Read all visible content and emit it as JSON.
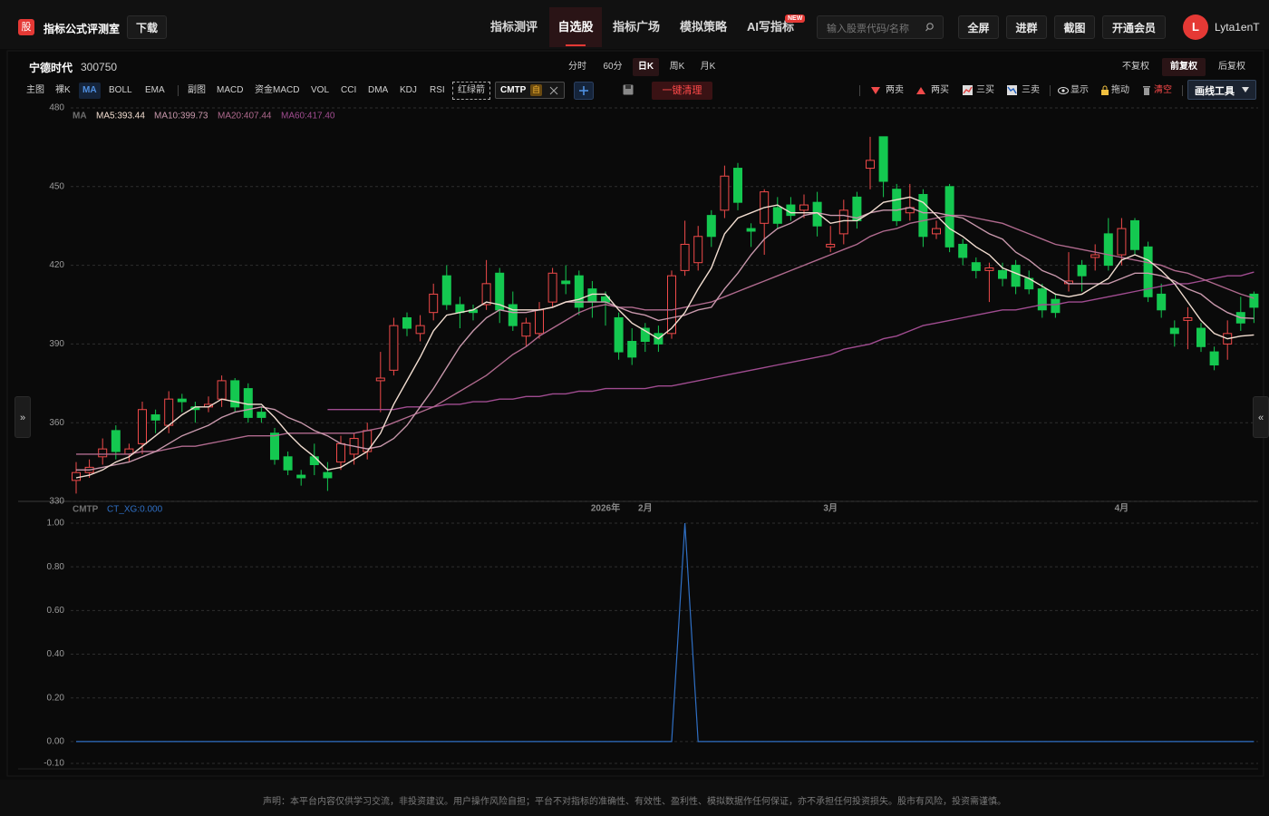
{
  "header": {
    "logo": "股",
    "title": "指标公式评测室",
    "download": "下载"
  },
  "nav": [
    "指标测评",
    "自选股",
    "指标广场",
    "模拟策略",
    "AI写指标"
  ],
  "nav_badge": "NEW",
  "search_placeholder": "输入股票代码/名称",
  "actions": [
    "全屏",
    "进群",
    "截图",
    "开通会员"
  ],
  "user": {
    "initial": "L",
    "name": "Lyta1enT"
  },
  "stock": {
    "name": "宁德时代",
    "code": "300750"
  },
  "periods": [
    "分时",
    "60分",
    "日K",
    "周K",
    "月K"
  ],
  "adjust": [
    "不复权",
    "前复权",
    "后复权"
  ],
  "toolbar": {
    "main": [
      "主图",
      "裸K",
      "MA",
      "BOLL",
      "EMA"
    ],
    "sub": [
      "副图",
      "MACD",
      "资金MACD",
      "VOL",
      "CCI",
      "DMA",
      "KDJ",
      "RSI",
      "红绿箭"
    ],
    "custom": "CMTP",
    "custom_tag": "自",
    "clear": "一键清理"
  },
  "draw_tools": [
    "两卖",
    "两买",
    "三买",
    "三卖",
    "显示",
    "拖动",
    "清空",
    "画线工具"
  ],
  "side": {
    "left": "»",
    "right": "«"
  },
  "footer": "声明：本平台内容仅供学习交流，非投资建议。用户操作风险自担；平台不对指标的准确性、有效性、盈利性、模拟数据作任何保证，亦不承担任何投资损失。股市有风险，投资需谨慎。",
  "chart_data": [
    {
      "type": "candlestick",
      "legend_title": "MA",
      "x": [
        null,
        null,
        null,
        null,
        null,
        null,
        null,
        null,
        null,
        null,
        null,
        null,
        null,
        null,
        null,
        null,
        null,
        null,
        null,
        null,
        null,
        null,
        null,
        null,
        null,
        null,
        null,
        null,
        null,
        null,
        null,
        null,
        null,
        null,
        null,
        null,
        null,
        null,
        null,
        null,
        "2026年",
        null,
        null,
        "2月",
        null,
        null,
        null,
        null,
        null,
        null,
        null,
        null,
        null,
        null,
        null,
        null,
        null,
        "3月",
        null,
        null,
        null,
        null,
        null,
        null,
        null,
        null,
        null,
        null,
        null,
        null,
        null,
        null,
        null,
        null,
        null,
        null,
        null,
        null,
        null,
        "4月",
        null,
        null,
        null,
        null,
        null,
        null,
        null,
        null,
        null,
        null
      ],
      "open": [
        338,
        341,
        347,
        357,
        348,
        352,
        363,
        359,
        369,
        366,
        366,
        369,
        376,
        373,
        364,
        356,
        347,
        340,
        347,
        341,
        345,
        348,
        349,
        376,
        380,
        400,
        394,
        402,
        416,
        405,
        403,
        405,
        417,
        405,
        393,
        394,
        406,
        414,
        416,
        411,
        408,
        400,
        391,
        396,
        394,
        394,
        418,
        421,
        439,
        441,
        457,
        434,
        436,
        442,
        443,
        441,
        444,
        427,
        432,
        446,
        457,
        469,
        449,
        440,
        447,
        432,
        450,
        428,
        421,
        418,
        418,
        420,
        415,
        411,
        407,
        413,
        420,
        423,
        432,
        424,
        437,
        427,
        409,
        396,
        399,
        396,
        387,
        390,
        402,
        409
      ],
      "high": [
        345,
        346,
        354,
        359,
        352,
        368,
        365,
        372,
        371,
        368,
        370,
        378,
        377,
        375,
        366,
        358,
        349,
        342,
        352,
        345,
        355,
        356,
        360,
        387,
        400,
        402,
        401,
        413,
        420,
        408,
        405,
        422,
        419,
        410,
        400,
        406,
        419,
        420,
        418,
        414,
        410,
        402,
        396,
        398,
        397,
        418,
        437,
        435,
        441,
        458,
        459,
        436,
        449,
        446,
        446,
        447,
        448,
        435,
        445,
        448,
        469,
        469,
        451,
        451,
        449,
        437,
        451,
        430,
        423,
        421,
        421,
        422,
        418,
        413,
        409,
        425,
        422,
        428,
        438,
        438,
        438,
        429,
        413,
        399,
        404,
        398,
        389,
        399,
        408,
        410
      ],
      "low": [
        333,
        339,
        344,
        346,
        345,
        348,
        356,
        356,
        364,
        360,
        364,
        366,
        364,
        360,
        360,
        344,
        340,
        336,
        340,
        334,
        342,
        344,
        346,
        364,
        378,
        393,
        391,
        399,
        403,
        396,
        399,
        403,
        398,
        395,
        389,
        392,
        404,
        409,
        401,
        400,
        397,
        384,
        382,
        387,
        387,
        392,
        416,
        418,
        427,
        438,
        441,
        427,
        424,
        434,
        437,
        438,
        431,
        425,
        428,
        434,
        449,
        446,
        435,
        437,
        427,
        430,
        425,
        420,
        415,
        406,
        412,
        409,
        409,
        400,
        400,
        410,
        410,
        418,
        418,
        420,
        424,
        406,
        400,
        389,
        388,
        387,
        380,
        384,
        395,
        398
      ],
      "close": [
        341,
        343,
        350,
        349,
        350,
        365,
        361,
        369,
        368,
        365,
        367,
        376,
        366,
        362,
        362,
        346,
        342,
        339,
        344,
        339,
        352,
        354,
        357,
        377,
        397,
        396,
        397,
        409,
        405,
        402,
        402,
        413,
        403,
        397,
        398,
        403,
        417,
        413,
        404,
        406,
        406,
        387,
        385,
        391,
        390,
        416,
        428,
        431,
        431,
        454,
        444,
        433,
        448,
        436,
        439,
        443,
        435,
        428,
        441,
        437,
        460,
        452,
        437,
        442,
        431,
        434,
        427,
        423,
        418,
        419,
        415,
        412,
        411,
        403,
        402,
        414,
        416,
        424,
        420,
        434,
        426,
        408,
        403,
        394,
        400,
        389,
        382,
        394,
        398,
        404
      ],
      "up_color": "#f04a4a",
      "down_color": "#14c850",
      "series": [
        {
          "name": "MA5:393.44",
          "color": "#f2ddd0",
          "values": [
            339,
            340,
            342,
            345,
            347,
            351,
            355,
            359,
            363,
            366,
            366,
            369,
            368,
            367,
            367,
            362,
            356,
            351,
            347,
            342,
            343,
            346,
            349,
            356,
            367,
            376,
            385,
            395,
            401,
            402,
            403,
            406,
            405,
            403,
            403,
            403,
            404,
            406,
            407,
            409,
            409,
            403,
            398,
            395,
            392,
            396,
            402,
            411,
            419,
            432,
            438,
            440,
            442,
            443,
            440,
            440,
            440,
            436,
            437,
            437,
            440,
            444,
            445,
            446,
            444,
            439,
            434,
            431,
            427,
            424,
            419,
            417,
            415,
            412,
            409,
            408,
            409,
            412,
            415,
            422,
            424,
            422,
            418,
            413,
            406,
            399,
            394,
            392,
            393,
            393.44
          ]
        },
        {
          "name": "MA10:399.73",
          "color": "#c898ac",
          "values": [
            342,
            342,
            343,
            344,
            345,
            347,
            349,
            352,
            355,
            357,
            359,
            362,
            364,
            365,
            366,
            365,
            362,
            360,
            357,
            355,
            352,
            351,
            350,
            351,
            354,
            359,
            366,
            373,
            381,
            389,
            395,
            400,
            403,
            402,
            402,
            403,
            404,
            406,
            406,
            406,
            406,
            404,
            402,
            401,
            399,
            400,
            401,
            403,
            404,
            411,
            417,
            424,
            430,
            434,
            436,
            439,
            440,
            439,
            439,
            438,
            440,
            441,
            441,
            442,
            440,
            440,
            439,
            438,
            435,
            432,
            430,
            425,
            422,
            418,
            416,
            413,
            413,
            413,
            413,
            415,
            417,
            417,
            416,
            414,
            411,
            409,
            405,
            402,
            400,
            399.73
          ]
        },
        {
          "name": "MA20:407.44",
          "color": "#b06a8e",
          "values": [
            348,
            348,
            348,
            348,
            348,
            349,
            349,
            350,
            351,
            351,
            352,
            353,
            354,
            355,
            355,
            355,
            356,
            356,
            356,
            356,
            356,
            356,
            357,
            358,
            360,
            362,
            364,
            366,
            369,
            372,
            375,
            378,
            382,
            386,
            389,
            393,
            396,
            399,
            402,
            404,
            405,
            404,
            404,
            403,
            403,
            403,
            404,
            405,
            406,
            408,
            410,
            412,
            414,
            416,
            418,
            420,
            422,
            424,
            426,
            428,
            431,
            433,
            434,
            436,
            437,
            438,
            439,
            439,
            438,
            437,
            436,
            434,
            432,
            430,
            428,
            427,
            426,
            425,
            424,
            423,
            422,
            421,
            420,
            418,
            417,
            415,
            413,
            411,
            409,
            407.44
          ]
        },
        {
          "name": "MA60:417.40",
          "color": "#a04c90",
          "values": [
            null,
            null,
            null,
            null,
            null,
            null,
            null,
            null,
            null,
            null,
            null,
            null,
            null,
            null,
            null,
            null,
            null,
            null,
            null,
            365,
            365,
            365,
            365,
            365,
            365,
            366,
            366,
            366,
            367,
            367,
            368,
            368,
            369,
            369,
            370,
            370,
            371,
            371,
            372,
            372,
            373,
            373,
            373,
            373,
            374,
            374,
            375,
            376,
            377,
            378,
            379,
            380,
            381,
            382,
            383,
            384,
            385,
            386,
            388,
            389,
            390,
            392,
            393,
            395,
            397,
            398,
            399,
            400,
            401,
            402,
            403,
            403,
            404,
            405,
            405,
            406,
            406,
            407,
            408,
            409,
            410,
            411,
            412,
            413,
            413,
            414,
            415,
            416,
            416,
            417.4
          ]
        }
      ],
      "ylim": [
        330,
        480
      ],
      "yticks": [
        330,
        360,
        390,
        420,
        450,
        480
      ],
      "grid": true
    },
    {
      "type": "line",
      "title": "CMTP",
      "series": [
        {
          "name": "CT_XG:0.000",
          "color": "#2f6fc4",
          "values": [
            0,
            0,
            0,
            0,
            0,
            0,
            0,
            0,
            0,
            0,
            0,
            0,
            0,
            0,
            0,
            0,
            0,
            0,
            0,
            0,
            0,
            0,
            0,
            0,
            0,
            0,
            0,
            0,
            0,
            0,
            0,
            0,
            0,
            0,
            0,
            0,
            0,
            0,
            0,
            0,
            0,
            0,
            0,
            0,
            0,
            0,
            1,
            0,
            0,
            0,
            0,
            0,
            0,
            0,
            0,
            0,
            0,
            0,
            0,
            0,
            0,
            0,
            0,
            0,
            0,
            0,
            0,
            0,
            0,
            0,
            0,
            0,
            0,
            0,
            0,
            0,
            0,
            0,
            0,
            0,
            0,
            0,
            0,
            0,
            0,
            0,
            0,
            0,
            0,
            0
          ]
        }
      ],
      "ylim": [
        -0.1,
        1
      ],
      "yticks": [
        {
          "value": -0.1,
          "label": "-0.10"
        },
        {
          "value": 0,
          "label": "0.00"
        },
        {
          "value": 0.2,
          "label": "0.20"
        },
        {
          "value": 0.4,
          "label": "0.40"
        },
        {
          "value": 0.6,
          "label": "0.60"
        },
        {
          "value": 0.8,
          "label": "0.80"
        },
        {
          "value": 1,
          "label": "1.00"
        }
      ],
      "grid": true
    }
  ]
}
